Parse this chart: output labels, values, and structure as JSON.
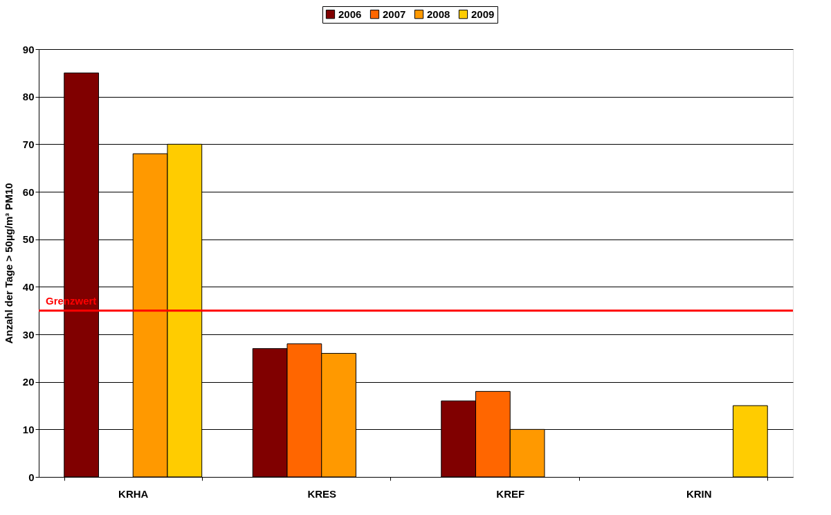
{
  "chart_data": {
    "type": "bar",
    "ylabel": "Anzahl der Tage > 50µg/m³ PM10",
    "categories": [
      "KRHA",
      "KRES",
      "KREF",
      "KRIN"
    ],
    "series": [
      {
        "name": "2006",
        "color": "#800000",
        "values": [
          85,
          27,
          16,
          null
        ]
      },
      {
        "name": "2007",
        "color": "#ff6600",
        "values": [
          null,
          28,
          18,
          null
        ]
      },
      {
        "name": "2008",
        "color": "#ff9900",
        "values": [
          68,
          26,
          10,
          null
        ]
      },
      {
        "name": "2009",
        "color": "#ffcc00",
        "values": [
          70,
          null,
          null,
          15
        ]
      }
    ],
    "ylim": [
      0,
      90
    ],
    "yticks": [
      0,
      10,
      20,
      30,
      40,
      50,
      60,
      70,
      80,
      90
    ],
    "grid": "y",
    "legend": "top",
    "ref_lines": [
      {
        "axis": "y",
        "value": 35,
        "label": "Grenzwert",
        "color": "#ff0000"
      }
    ]
  }
}
